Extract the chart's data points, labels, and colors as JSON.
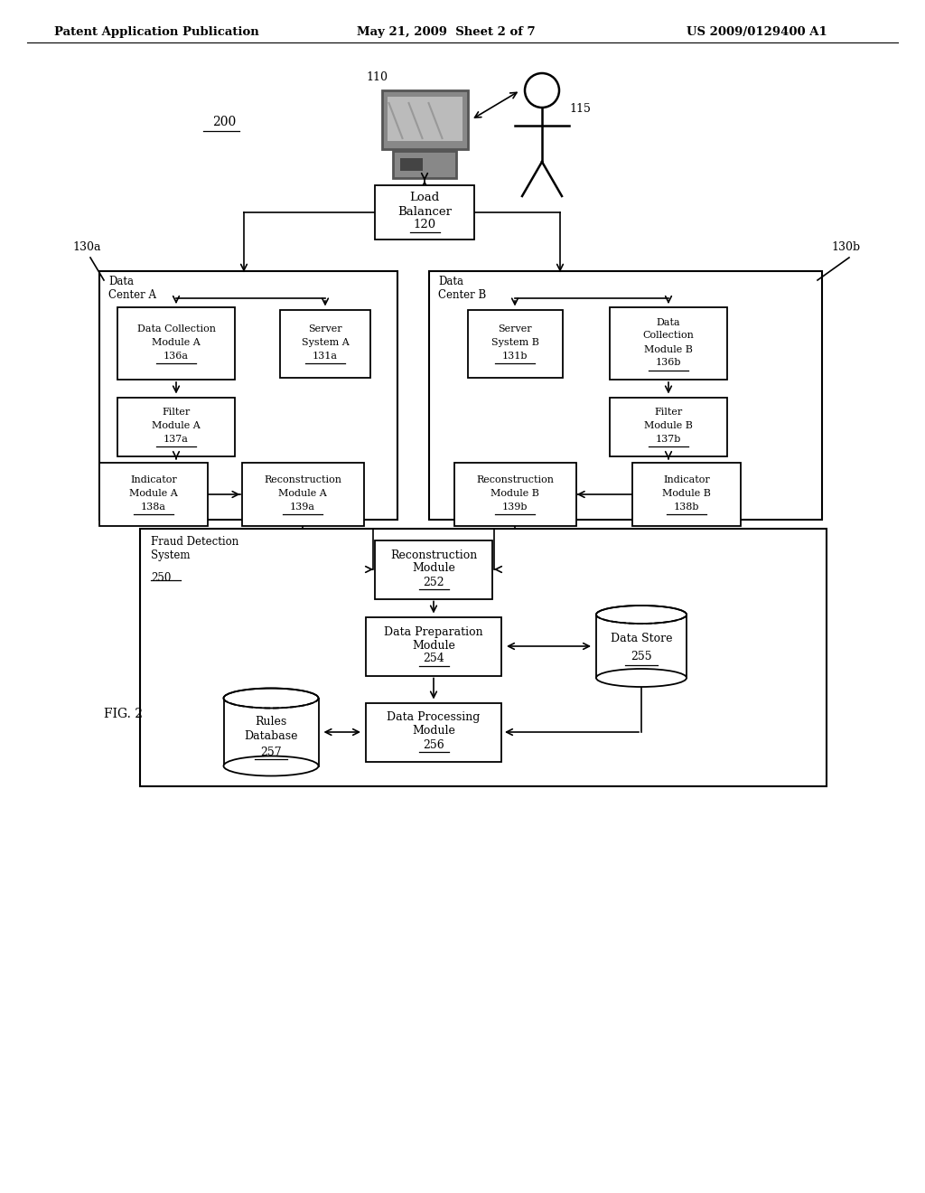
{
  "header_left": "Patent Application Publication",
  "header_mid": "May 21, 2009  Sheet 2 of 7",
  "header_right": "US 2009/0129400 A1",
  "fig_label": "FIG. 2",
  "background_color": "#ffffff",
  "line_color": "#000000",
  "box_fill": "#ffffff",
  "box_edge": "#000000"
}
